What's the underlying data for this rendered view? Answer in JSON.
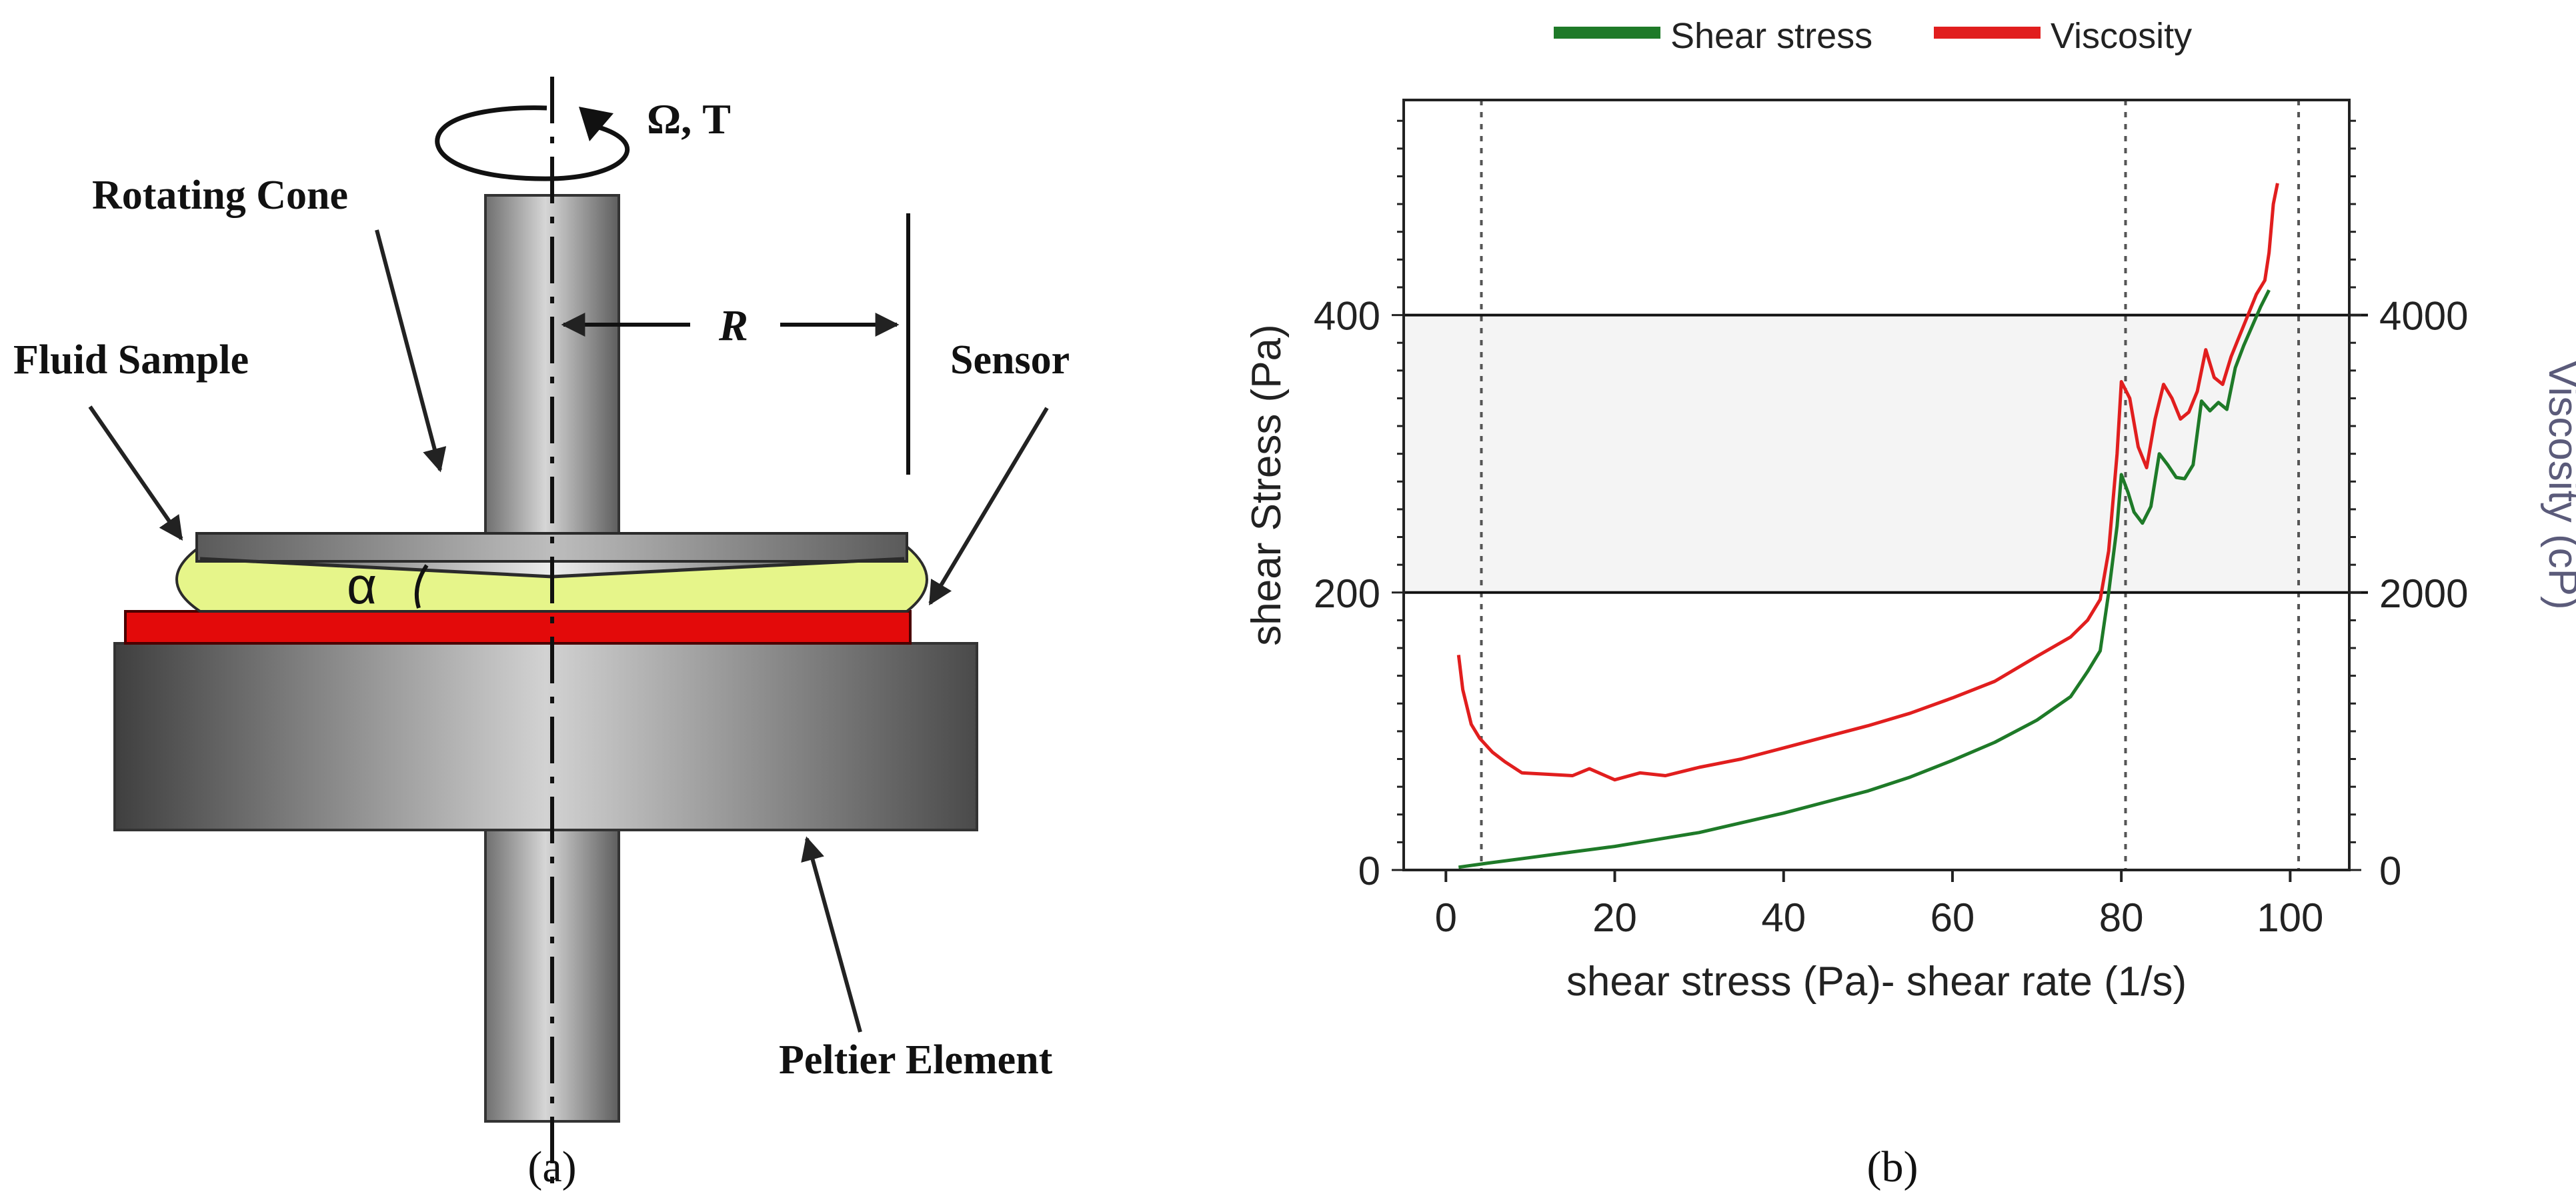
{
  "panel_a": {
    "caption": "(a)",
    "labels": {
      "rotation": "Ω, T",
      "rotating_cone": "Rotating Cone",
      "radius": "R",
      "fluid_sample": "Fluid Sample",
      "sensor": "Sensor",
      "angle": "α",
      "peltier": "Peltier Element"
    },
    "colors": {
      "fluid": "#e6f58a",
      "sensor_plate": "#e30a0a",
      "metal": "#8c8c8c"
    }
  },
  "panel_b": {
    "caption": "(b)"
  },
  "chart_data": {
    "type": "line",
    "legend_position": "top",
    "xlabel": "shear stress (Pa)- shear rate (1/s)",
    "ylabel": "shear Stress (Pa)",
    "y2label": "Viscosity (cP)",
    "xlim": [
      -5,
      107
    ],
    "ylim": [
      0,
      555
    ],
    "y2lim": [
      0,
      5550
    ],
    "x_ticks": [
      "0",
      "20",
      "40",
      "60",
      "80",
      "100"
    ],
    "y_ticks": [
      "0",
      "200",
      "400"
    ],
    "y2_ticks": [
      "0",
      "2000",
      "4000"
    ],
    "reference_lines_y": [
      200,
      400
    ],
    "shaded_band_y": [
      200,
      400
    ],
    "vertical_dotted_x": [
      4.2,
      80.5,
      101
    ],
    "series": [
      {
        "name": "Shear stress",
        "axis": "left",
        "color": "#1e7a28",
        "x": [
          1.5,
          5,
          10,
          15,
          20,
          25,
          30,
          35,
          40,
          45,
          50,
          55,
          60,
          65,
          70,
          74,
          76,
          77.5,
          78.5,
          79.5,
          80,
          80.8,
          81.5,
          82.5,
          83.5,
          84.5,
          85.5,
          86.5,
          87.5,
          88.5,
          89.5,
          90.5,
          91.5,
          92.5,
          93.5,
          94.5,
          95.5,
          96.5,
          97.5
        ],
        "values": [
          2,
          5,
          9,
          13,
          17,
          22,
          27,
          34,
          41,
          49,
          57,
          67,
          79,
          92,
          108,
          125,
          143,
          158,
          200,
          248,
          285,
          272,
          258,
          250,
          262,
          300,
          292,
          283,
          282,
          292,
          338,
          331,
          337,
          332,
          362,
          378,
          392,
          406,
          418
        ]
      },
      {
        "name": "Viscosity",
        "axis": "right",
        "color": "#e11e1e",
        "x": [
          1.5,
          2,
          3,
          4,
          5.5,
          7,
          9,
          12,
          15,
          17,
          20,
          23,
          26,
          30,
          35,
          40,
          45,
          50,
          55,
          60,
          65,
          70,
          74,
          76,
          77.5,
          78.5,
          79.5,
          80,
          81,
          82,
          83,
          84,
          85,
          86,
          87,
          88,
          89,
          90,
          91,
          92,
          93,
          94,
          95,
          96,
          97,
          97.5,
          98,
          98.5
        ],
        "values": [
          1550,
          1300,
          1050,
          950,
          850,
          780,
          700,
          690,
          680,
          730,
          650,
          700,
          680,
          740,
          800,
          880,
          960,
          1040,
          1130,
          1240,
          1360,
          1540,
          1680,
          1800,
          1950,
          2300,
          3000,
          3520,
          3400,
          3050,
          2900,
          3250,
          3500,
          3400,
          3250,
          3300,
          3450,
          3750,
          3550,
          3500,
          3700,
          3850,
          4000,
          4150,
          4250,
          4450,
          4800,
          4950
        ]
      }
    ]
  }
}
